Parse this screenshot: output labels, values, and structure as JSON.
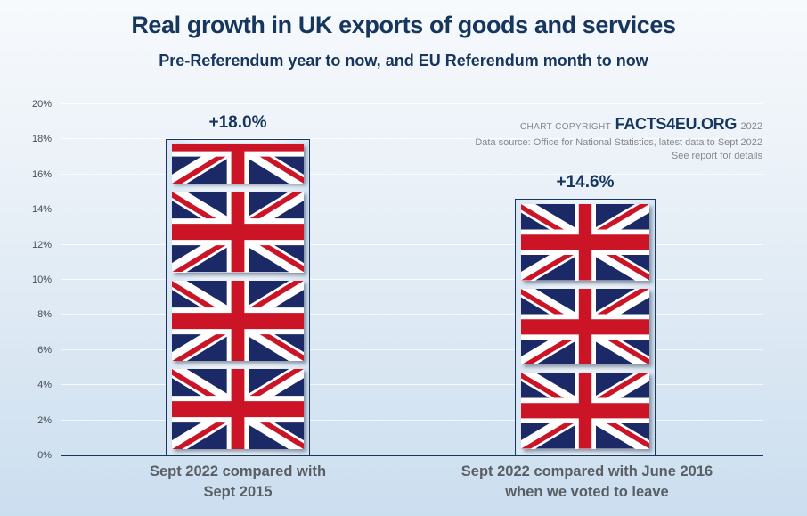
{
  "title": "Real growth in UK exports of goods and services",
  "subtitle": "Pre-Referendum year to now, and EU Referendum month to now",
  "credit": {
    "prefix": "CHART COPYRIGHT",
    "brand": "FACTS4EU.ORG",
    "year": "2022",
    "source": "Data source: Office for National Statistics, latest data to Sept 2022",
    "note": "See report for details"
  },
  "chart_data": {
    "type": "bar",
    "title": "Real growth in UK exports of goods and services",
    "subtitle": "Pre-Referendum year to now, and EU Referendum month to now",
    "categories": [
      "Sept 2022 compared with Sept 2015",
      "Sept 2022 compared with June 2016 when we voted to leave"
    ],
    "values": [
      18.0,
      14.6
    ],
    "xlabel": "",
    "ylabel": "",
    "ylim": [
      0,
      20
    ],
    "ytick_step": 2,
    "ytick_labels": [
      "0%",
      "2%",
      "4%",
      "6%",
      "8%",
      "10%",
      "12%",
      "14%",
      "16%",
      "18%",
      "20%"
    ],
    "grid": true,
    "legend_position": "none",
    "bar_fill_style": "stacked-union-jack-flags",
    "bars": [
      {
        "value": 18.0,
        "value_label": "+18.0%",
        "category_line1": "Sept 2022 compared with",
        "category_line2": "Sept 2015",
        "flag_count": 4,
        "first_flag_clipped": true
      },
      {
        "value": 14.6,
        "value_label": "+14.6%",
        "category_line1": "Sept 2022 compared with June 2016",
        "category_line2": "when we voted to leave",
        "flag_count": 3,
        "first_flag_clipped": false
      }
    ]
  },
  "colors": {
    "title_navy": "#17365d",
    "label_gray": "#5a5f66",
    "tick_gray": "#4a4f55",
    "credit_gray": "#84898f",
    "axis_navy": "#17375e",
    "flag_navy": "#1b2a67",
    "flag_red": "#cc1427",
    "background_top": "#f7fafd",
    "background_bottom": "#cbdeef"
  }
}
